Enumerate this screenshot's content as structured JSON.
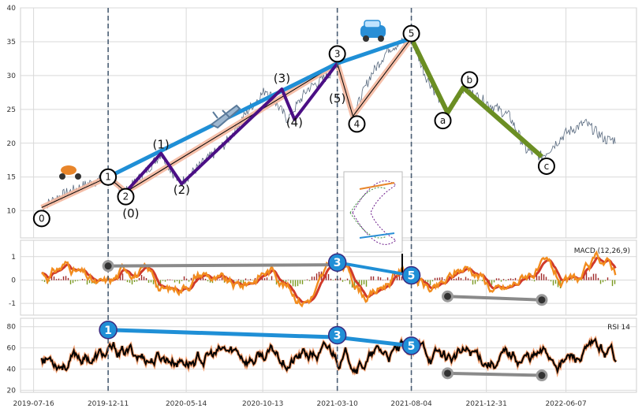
{
  "chart_data": {
    "type": "line",
    "x_ticks": [
      "2019-07-16",
      "2019-12-11",
      "2020-05-14",
      "2020-10-13",
      "2021-03-10",
      "2021-08-04",
      "2021-12-31",
      "2022-06-07"
    ],
    "price_panel": {
      "ylim": [
        6,
        40
      ],
      "y_ticks": [
        10,
        15,
        20,
        25,
        30,
        35,
        40
      ],
      "series": [
        {
          "x": "2019-08-01",
          "y": 10.5
        },
        {
          "x": "2019-09-01",
          "y": 12.0
        },
        {
          "x": "2019-10-01",
          "y": 13.0
        },
        {
          "x": "2019-11-01",
          "y": 14.0
        },
        {
          "x": "2019-12-11",
          "y": 15.0
        },
        {
          "x": "2020-01-15",
          "y": 12.8
        },
        {
          "x": "2020-02-20",
          "y": 15.5
        },
        {
          "x": "2020-03-25",
          "y": 18.5
        },
        {
          "x": "2020-05-01",
          "y": 14.0
        },
        {
          "x": "2020-06-15",
          "y": 17.0
        },
        {
          "x": "2020-08-01",
          "y": 20.0
        },
        {
          "x": "2020-09-15",
          "y": 25.0
        },
        {
          "x": "2020-10-20",
          "y": 28.0
        },
        {
          "x": "2020-12-01",
          "y": 23.5
        },
        {
          "x": "2021-01-10",
          "y": 28.0
        },
        {
          "x": "2021-02-20",
          "y": 30.0
        },
        {
          "x": "2021-03-10",
          "y": 31.8
        },
        {
          "x": "2021-04-10",
          "y": 24.0
        },
        {
          "x": "2021-05-15",
          "y": 30.0
        },
        {
          "x": "2021-06-20",
          "y": 34.0
        },
        {
          "x": "2021-08-04",
          "y": 35.5
        },
        {
          "x": "2021-09-01",
          "y": 30.0
        },
        {
          "x": "2021-10-15",
          "y": 24.5
        },
        {
          "x": "2021-11-15",
          "y": 28.2
        },
        {
          "x": "2022-01-01",
          "y": 26.0
        },
        {
          "x": "2022-02-15",
          "y": 24.0
        },
        {
          "x": "2022-03-20",
          "y": 19.0
        },
        {
          "x": "2022-04-20",
          "y": 18.0
        },
        {
          "x": "2022-06-07",
          "y": 21.5
        },
        {
          "x": "2022-07-15",
          "y": 23.0
        },
        {
          "x": "2022-08-25",
          "y": 20.5
        },
        {
          "x": "2022-09-15",
          "y": 20.5
        }
      ],
      "wave_points": [
        {
          "label": "0",
          "x": "2019-08-01",
          "y": 10.5
        },
        {
          "label": "1",
          "x": "2019-12-11",
          "y": 15.0
        },
        {
          "label": "2",
          "x": "2020-01-15",
          "y": 12.8
        },
        {
          "label": "3",
          "x": "2021-03-10",
          "y": 31.8
        },
        {
          "label": "4",
          "x": "2021-04-10",
          "y": 24.0
        },
        {
          "label": "5",
          "x": "2021-08-04",
          "y": 35.5
        },
        {
          "label": "a",
          "x": "2021-10-15",
          "y": 24.5
        },
        {
          "label": "b",
          "x": "2021-11-15",
          "y": 28.2
        },
        {
          "label": "c",
          "x": "2022-04-20",
          "y": 18.0
        }
      ],
      "subwave_labels": [
        {
          "label": "(0)",
          "x": "2020-01-25",
          "y": 9.0
        },
        {
          "label": "(1)",
          "x": "2020-03-25",
          "y": 19.2
        },
        {
          "label": "(2)",
          "x": "2020-05-05",
          "y": 12.5
        },
        {
          "label": "(3)",
          "x": "2020-11-20",
          "y": 29.0
        },
        {
          "label": "(4)",
          "x": "2020-12-15",
          "y": 22.5
        },
        {
          "label": "(5)",
          "x": "2021-03-10",
          "y": 26.0
        }
      ],
      "vlines": [
        "2019-12-11",
        "2021-03-10",
        "2021-08-04"
      ]
    },
    "macd_panel": {
      "label": "MACD (12,26,9)",
      "ylim": [
        -1.5,
        1.7
      ],
      "y_ticks": [
        -1,
        0,
        1
      ],
      "trendlines": [
        {
          "x1": "2019-12-11",
          "y1": 0.6,
          "x2": "2021-03-10",
          "y2": 0.65
        },
        {
          "x1": "2021-10-15",
          "y1": -0.7,
          "x2": "2022-04-20",
          "y2": -0.85
        }
      ],
      "badges": [
        {
          "label": "3",
          "x": "2021-03-10",
          "y": 0.75
        },
        {
          "label": "5",
          "x": "2021-08-04",
          "y": 0.2
        }
      ]
    },
    "rsi_panel": {
      "label": "RSI 14",
      "ylim": [
        18,
        88
      ],
      "y_ticks": [
        20,
        40,
        60,
        80
      ],
      "trendlines": [
        {
          "x1": "2019-12-11",
          "y1": 77,
          "x2": "2021-03-10",
          "y2": 70
        },
        {
          "x1": "2021-03-10",
          "y1": 70,
          "x2": "2021-08-04",
          "y2": 62
        },
        {
          "x1": "2021-10-15",
          "y1": 36,
          "x2": "2022-04-20",
          "y2": 34
        }
      ],
      "badges": [
        {
          "label": "1",
          "x": "2019-12-11",
          "y": 77
        },
        {
          "label": "3",
          "x": "2021-03-10",
          "y": 72
        },
        {
          "label": "5",
          "x": "2021-08-04",
          "y": 62
        }
      ]
    }
  },
  "colors": {
    "price_line": "#5a6b80",
    "trend_blue": "#1f8fd6",
    "wave_salmon": "#f4b8a0",
    "wave_purple": "#4b0f85",
    "correction_green": "#6b8e23",
    "macd_orange": "#f28c1e",
    "macd_red": "#d03a2a",
    "hist_pos": "#a02a2a",
    "hist_neg": "#7a9a20",
    "rsi_black": "#000000",
    "rsi_outline": "#f4a070",
    "grid": "#d9d9d9",
    "vline": "#4a5d73"
  },
  "icons": [
    "scooter-icon",
    "airplane-icon",
    "car-icon",
    "fibonacci-diagram-icon"
  ]
}
